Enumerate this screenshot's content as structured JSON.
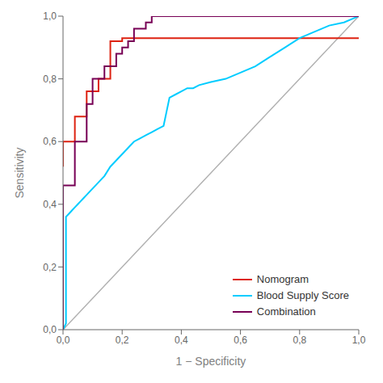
{
  "chart_data": {
    "type": "line",
    "xlabel": "1 − Specificity",
    "ylabel": "Sensitivity",
    "xlim": [
      0.0,
      1.0
    ],
    "ylim": [
      0.0,
      1.0
    ],
    "xticks": [
      {
        "value": 0.0,
        "label": "0,0"
      },
      {
        "value": 0.2,
        "label": "0,2"
      },
      {
        "value": 0.4,
        "label": "0,4"
      },
      {
        "value": 0.6,
        "label": "0,6"
      },
      {
        "value": 0.8,
        "label": "0,8"
      },
      {
        "value": 1.0,
        "label": "1,0"
      }
    ],
    "yticks": [
      {
        "value": 0.0,
        "label": "0,0"
      },
      {
        "value": 0.2,
        "label": "0,2"
      },
      {
        "value": 0.4,
        "label": "0,4"
      },
      {
        "value": 0.6,
        "label": "0,6"
      },
      {
        "value": 0.8,
        "label": "0,8"
      },
      {
        "value": 1.0,
        "label": "1,0"
      }
    ],
    "grid": false,
    "legend": "lower right",
    "series": [
      {
        "color": "#b0b0b0",
        "x": [
          0,
          1
        ],
        "values": [
          0,
          1
        ]
      },
      {
        "name": "Nomogram",
        "color": "#dd2211",
        "x": [
          0.0,
          0.0,
          0.04,
          0.04,
          0.08,
          0.08,
          0.12,
          0.12,
          0.16,
          0.16,
          0.2,
          0.2,
          1.0
        ],
        "values": [
          0.52,
          0.6,
          0.6,
          0.68,
          0.68,
          0.76,
          0.76,
          0.8,
          0.8,
          0.92,
          0.92,
          0.93,
          0.93
        ]
      },
      {
        "name": "Blood Supply Score",
        "color": "#00ccff",
        "x": [
          0.0,
          0.01,
          0.01,
          0.02,
          0.03,
          0.04,
          0.05,
          0.06,
          0.07,
          0.08,
          0.1,
          0.12,
          0.14,
          0.16,
          0.18,
          0.2,
          0.22,
          0.24,
          0.26,
          0.28,
          0.3,
          0.32,
          0.34,
          0.36,
          0.38,
          0.4,
          0.42,
          0.44,
          0.46,
          0.5,
          0.55,
          0.6,
          0.65,
          0.7,
          0.75,
          0.8,
          0.85,
          0.9,
          0.95,
          1.0
        ],
        "values": [
          0.0,
          0.02,
          0.36,
          0.37,
          0.38,
          0.39,
          0.4,
          0.41,
          0.42,
          0.43,
          0.45,
          0.47,
          0.49,
          0.52,
          0.54,
          0.56,
          0.58,
          0.6,
          0.61,
          0.62,
          0.63,
          0.64,
          0.65,
          0.74,
          0.75,
          0.76,
          0.77,
          0.77,
          0.78,
          0.79,
          0.8,
          0.82,
          0.84,
          0.87,
          0.9,
          0.93,
          0.95,
          0.97,
          0.98,
          1.0
        ]
      },
      {
        "name": "Combination",
        "color": "#770055",
        "x": [
          0.0,
          0.0,
          0.04,
          0.04,
          0.08,
          0.08,
          0.1,
          0.1,
          0.14,
          0.14,
          0.18,
          0.18,
          0.2,
          0.2,
          0.22,
          0.22,
          0.24,
          0.24,
          0.28,
          0.28,
          0.3,
          0.3,
          1.0
        ],
        "values": [
          0.0,
          0.46,
          0.46,
          0.6,
          0.6,
          0.72,
          0.72,
          0.8,
          0.8,
          0.84,
          0.84,
          0.88,
          0.88,
          0.9,
          0.9,
          0.92,
          0.92,
          0.96,
          0.96,
          0.98,
          0.98,
          1.0,
          1.0
        ]
      }
    ]
  }
}
